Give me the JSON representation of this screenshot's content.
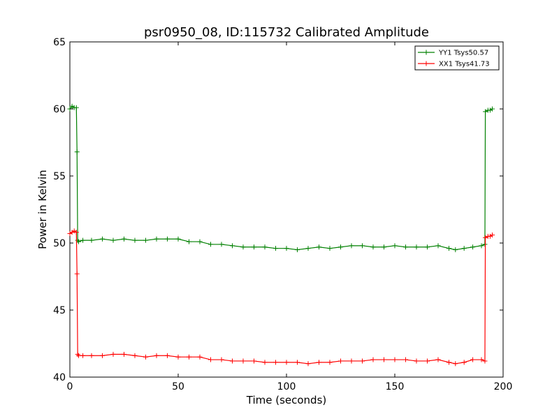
{
  "chart_data": {
    "type": "line",
    "title": "psr0950_08, ID:115732 Calibrated Amplitude",
    "xlabel": "Time (seconds)",
    "ylabel": "Power in Kelvin",
    "xlim": [
      0,
      200
    ],
    "ylim": [
      40,
      65
    ],
    "xticks": [
      0,
      50,
      100,
      150,
      200
    ],
    "yticks": [
      40,
      45,
      50,
      55,
      60,
      65
    ],
    "grid": false,
    "legend_position": "top-right",
    "series": [
      {
        "name": "YY1 Tsys50.57",
        "color": "#008000",
        "marker": "+",
        "x": [
          0,
          1,
          2,
          3,
          3.3,
          3.6,
          4,
          6,
          10,
          15,
          20,
          25,
          30,
          35,
          40,
          45,
          50,
          55,
          60,
          65,
          70,
          75,
          80,
          85,
          90,
          95,
          100,
          105,
          110,
          115,
          120,
          125,
          130,
          135,
          140,
          145,
          150,
          155,
          160,
          165,
          170,
          175,
          178,
          182,
          186,
          190,
          191.6,
          191.8,
          193,
          194,
          195
        ],
        "y": [
          60.0,
          60.2,
          60.1,
          60.1,
          56.8,
          50.2,
          50.1,
          50.2,
          50.2,
          50.3,
          50.2,
          50.3,
          50.2,
          50.2,
          50.3,
          50.3,
          50.3,
          50.1,
          50.1,
          49.9,
          49.9,
          49.8,
          49.7,
          49.7,
          49.7,
          49.6,
          49.6,
          49.5,
          49.6,
          49.7,
          49.6,
          49.7,
          49.8,
          49.8,
          49.7,
          49.7,
          49.8,
          49.7,
          49.7,
          49.7,
          49.8,
          49.6,
          49.5,
          49.6,
          49.7,
          49.8,
          49.9,
          59.8,
          59.9,
          59.9,
          60.0
        ]
      },
      {
        "name": "XX1 Tsys41.73",
        "color": "#ff0000",
        "marker": "+",
        "x": [
          0,
          1,
          2,
          3,
          3.3,
          3.6,
          4,
          6,
          10,
          15,
          20,
          25,
          30,
          35,
          40,
          45,
          50,
          55,
          60,
          65,
          70,
          75,
          80,
          85,
          90,
          95,
          100,
          105,
          110,
          115,
          120,
          125,
          130,
          135,
          140,
          145,
          150,
          155,
          160,
          165,
          170,
          175,
          178,
          182,
          186,
          190,
          191.6,
          191.8,
          193,
          194,
          195
        ],
        "y": [
          50.7,
          50.8,
          50.9,
          50.8,
          47.7,
          41.7,
          41.6,
          41.6,
          41.6,
          41.6,
          41.7,
          41.7,
          41.6,
          41.5,
          41.6,
          41.6,
          41.5,
          41.5,
          41.5,
          41.3,
          41.3,
          41.2,
          41.2,
          41.2,
          41.1,
          41.1,
          41.1,
          41.1,
          41.0,
          41.1,
          41.1,
          41.2,
          41.2,
          41.2,
          41.3,
          41.3,
          41.3,
          41.3,
          41.2,
          41.2,
          41.3,
          41.1,
          41.0,
          41.1,
          41.3,
          41.3,
          41.2,
          50.4,
          50.5,
          50.5,
          50.6
        ]
      }
    ]
  }
}
